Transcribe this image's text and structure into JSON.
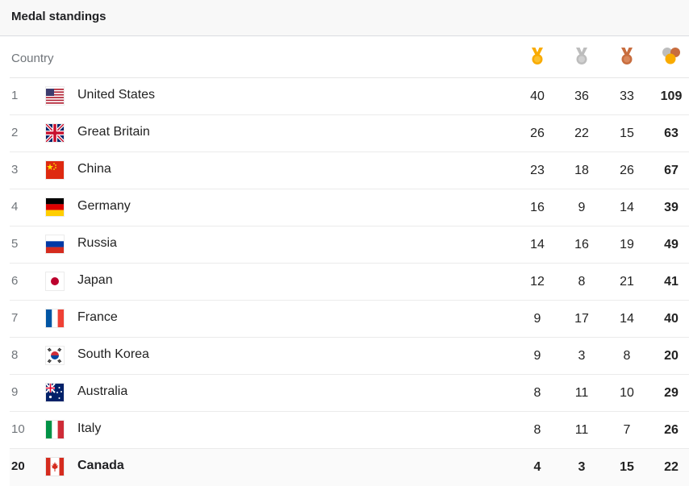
{
  "header": {
    "title": "Medal standings"
  },
  "columns": {
    "country": "Country",
    "gold_icon": "gold-medal-icon",
    "silver_icon": "silver-medal-icon",
    "bronze_icon": "bronze-medal-icon",
    "total_icon": "total-medals-icon"
  },
  "colors": {
    "gold": "#f9ab00",
    "silver": "#bdbdbd",
    "bronze": "#c86d3e"
  },
  "rows": [
    {
      "rank": "1",
      "country": "United States",
      "flag": "flag-us-icon",
      "gold": "40",
      "silver": "36",
      "bronze": "33",
      "total": "109"
    },
    {
      "rank": "2",
      "country": "Great Britain",
      "flag": "flag-gb-icon",
      "gold": "26",
      "silver": "22",
      "bronze": "15",
      "total": "63"
    },
    {
      "rank": "3",
      "country": "China",
      "flag": "flag-cn-icon",
      "gold": "23",
      "silver": "18",
      "bronze": "26",
      "total": "67"
    },
    {
      "rank": "4",
      "country": "Germany",
      "flag": "flag-de-icon",
      "gold": "16",
      "silver": "9",
      "bronze": "14",
      "total": "39"
    },
    {
      "rank": "5",
      "country": "Russia",
      "flag": "flag-ru-icon",
      "gold": "14",
      "silver": "16",
      "bronze": "19",
      "total": "49"
    },
    {
      "rank": "6",
      "country": "Japan",
      "flag": "flag-jp-icon",
      "gold": "12",
      "silver": "8",
      "bronze": "21",
      "total": "41"
    },
    {
      "rank": "7",
      "country": "France",
      "flag": "flag-fr-icon",
      "gold": "9",
      "silver": "17",
      "bronze": "14",
      "total": "40"
    },
    {
      "rank": "8",
      "country": "South Korea",
      "flag": "flag-kr-icon",
      "gold": "9",
      "silver": "3",
      "bronze": "8",
      "total": "20"
    },
    {
      "rank": "9",
      "country": "Australia",
      "flag": "flag-au-icon",
      "gold": "8",
      "silver": "11",
      "bronze": "10",
      "total": "29"
    },
    {
      "rank": "10",
      "country": "Italy",
      "flag": "flag-it-icon",
      "gold": "8",
      "silver": "11",
      "bronze": "7",
      "total": "26"
    },
    {
      "rank": "20",
      "country": "Canada",
      "flag": "flag-ca-icon",
      "gold": "4",
      "silver": "3",
      "bronze": "15",
      "total": "22",
      "highlighted": true
    }
  ]
}
